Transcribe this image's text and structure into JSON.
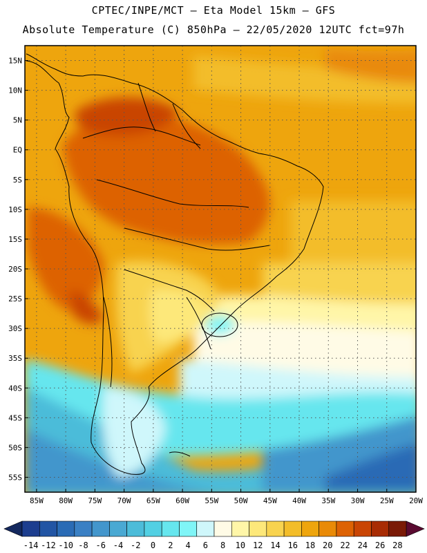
{
  "title_line1": "CPTEC/INPE/MCT —  Eta Model 15km — GFS",
  "title_line2": "Absolute Temperature (C) 850hPa — 22/05/2020 12UTC fct=97h",
  "lat_labels": [
    "15N",
    "10N",
    "5N",
    "EQ",
    "5S",
    "10S",
    "15S",
    "20S",
    "25S",
    "30S",
    "35S",
    "40S",
    "45S",
    "50S",
    "55S"
  ],
  "lat_values": [
    15,
    10,
    5,
    0,
    -5,
    -10,
    -15,
    -20,
    -25,
    -30,
    -35,
    -40,
    -45,
    -50,
    -55
  ],
  "lon_labels": [
    "85W",
    "80W",
    "75W",
    "70W",
    "65W",
    "60W",
    "55W",
    "50W",
    "45W",
    "40W",
    "35W",
    "30W",
    "25W",
    "20W"
  ],
  "lon_values": [
    -85,
    -80,
    -75,
    -70,
    -65,
    -60,
    -55,
    -50,
    -45,
    -40,
    -35,
    -30,
    -25,
    -20
  ],
  "colorbar": {
    "labels": [
      "-14",
      "-12",
      "-10",
      "-8",
      "-6",
      "-4",
      "-2",
      "0",
      "2",
      "4",
      "6",
      "8",
      "10",
      "12",
      "14",
      "16",
      "18",
      "20",
      "22",
      "24",
      "26",
      "28"
    ],
    "colors": [
      "#1d3e8f",
      "#2255a4",
      "#2a6bb5",
      "#3a80c4",
      "#4396cc",
      "#4aa9d3",
      "#4cbcd9",
      "#52d0e3",
      "#66e6ee",
      "#7ff5f7",
      "#cff7fb",
      "#fffbe6",
      "#fff6a8",
      "#fde87a",
      "#f8d34f",
      "#f3bd29",
      "#eea50d",
      "#e98a07",
      "#dd6204",
      "#c94504",
      "#a82c04",
      "#7a1a06"
    ],
    "low_color": "#14285e",
    "high_color": "#5a0a30"
  }
}
